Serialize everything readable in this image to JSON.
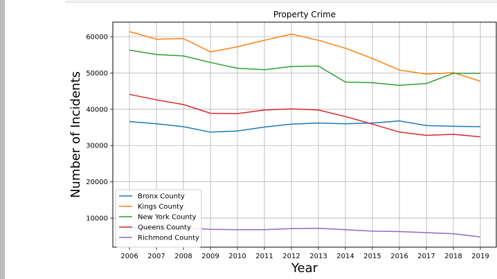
{
  "chart_data": {
    "type": "line",
    "title": "Property Crime",
    "xlabel": "Year",
    "ylabel": "Number of Incidents",
    "x": [
      2006,
      2007,
      2008,
      2009,
      2010,
      2011,
      2012,
      2013,
      2014,
      2015,
      2016,
      2017,
      2018,
      2019
    ],
    "xticks": [
      "2006",
      "2007",
      "2008",
      "2009",
      "2010",
      "2011",
      "2012",
      "2013",
      "2014",
      "2015",
      "2016",
      "2017",
      "2018",
      "2019"
    ],
    "yticks": [
      10000,
      20000,
      30000,
      40000,
      50000,
      60000
    ],
    "ytick_labels": [
      "10000",
      "20000",
      "30000",
      "40000",
      "50000",
      "60000"
    ],
    "ylim": [
      2000,
      64000
    ],
    "grid": true,
    "legend_position": "lower-left",
    "series": [
      {
        "name": "Bronx County",
        "color": "#1f77b4",
        "values": [
          36600,
          36000,
          35200,
          33700,
          34000,
          35100,
          35900,
          36200,
          36000,
          36200,
          36800,
          35500,
          35300,
          35200
        ]
      },
      {
        "name": "Kings County",
        "color": "#ff7f0e",
        "values": [
          61400,
          59300,
          59500,
          55800,
          57200,
          59000,
          60700,
          59000,
          56800,
          54000,
          50800,
          49700,
          50100,
          47700
        ]
      },
      {
        "name": "New York County",
        "color": "#2ca02c",
        "values": [
          56300,
          55100,
          54700,
          52900,
          51300,
          50900,
          51800,
          51900,
          47500,
          47300,
          46600,
          47100,
          49900,
          49900
        ]
      },
      {
        "name": "Queens County",
        "color": "#d62728",
        "values": [
          44100,
          42600,
          41300,
          38900,
          38800,
          39800,
          40100,
          39800,
          38000,
          35900,
          33700,
          32800,
          33100,
          32400
        ]
      },
      {
        "name": "Richmond County",
        "color": "#9467bd",
        "values": [
          7300,
          7300,
          7300,
          6900,
          6800,
          6800,
          7100,
          7200,
          6800,
          6400,
          6300,
          6000,
          5700,
          4800
        ]
      }
    ]
  }
}
